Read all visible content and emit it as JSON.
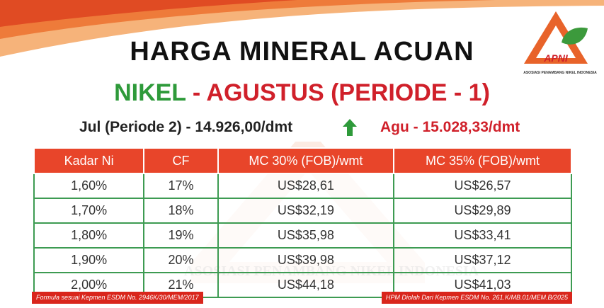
{
  "header": {
    "title": "HARGA MINERAL ACUAN",
    "subtitle_commodity": "NIKEL",
    "subtitle_period": "- AGUSTUS (PERIODE - 1)",
    "previous_price": "Jul (Periode 2) - 14.926,00/dmt",
    "current_price": "Agu - 15.028,33/dmt"
  },
  "logo": {
    "acronym": "APNI",
    "full_name": "ASOSIASI PENAMBANG NIKEL INDONESIA"
  },
  "table": {
    "headers": [
      "Kadar Ni",
      "CF",
      "MC 30% (FOB)/wmt",
      "MC 35% (FOB)/wmt"
    ],
    "rows": [
      [
        "1,60%",
        "17%",
        "US$28,61",
        "US$26,57"
      ],
      [
        "1,70%",
        "18%",
        "US$32,19",
        "US$29,89"
      ],
      [
        "1,80%",
        "19%",
        "US$35,98",
        "US$33,41"
      ],
      [
        "1,90%",
        "20%",
        "US$39,98",
        "US$37,12"
      ],
      [
        "2,00%",
        "21%",
        "US$44,18",
        "US$41,03"
      ]
    ]
  },
  "footer": {
    "left_note": "Formula sesuai Kepmen ESDM No. 2946K/30/MEM/2017",
    "right_note": "HPM Diolah Dari Kepmen ESDM No. 261.K/MB.01/MEM.B/2025"
  }
}
